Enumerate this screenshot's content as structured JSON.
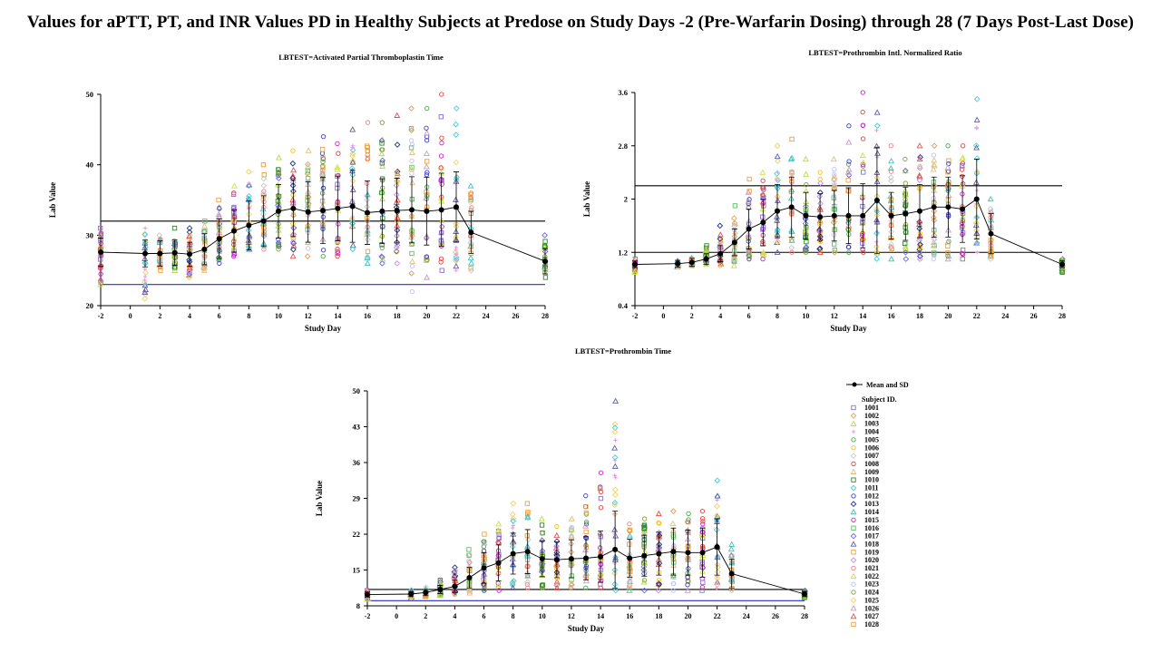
{
  "page_title": "Values for aPTT, PT, and INR Values PD in Healthy Subjects at Predose on Study Days -2 (Pre-Warfarin Dosing) through 28 (7 Days Post-Last Dose)",
  "legend": {
    "mean_label": "Mean and SD",
    "subject_header": "Subject ID.",
    "subjects": [
      "1001",
      "1002",
      "1003",
      "1004",
      "1005",
      "1006",
      "1007",
      "1008",
      "1009",
      "1010",
      "1011",
      "1012",
      "1013",
      "1014",
      "1015",
      "1016",
      "1017",
      "1018",
      "1019",
      "1020",
      "1021",
      "1022",
      "1023",
      "1024",
      "1025",
      "1026",
      "1027",
      "1028"
    ]
  },
  "chart_data": [
    {
      "type": "scatter",
      "title": "LBTEST=Activated Partial Thromboplastin Time",
      "xlabel": "Study Day",
      "ylabel": "Lab Value",
      "xlim": [
        -2,
        28
      ],
      "ylim": [
        20,
        50
      ],
      "xticks": [
        -2,
        0,
        2,
        4,
        6,
        8,
        10,
        12,
        14,
        16,
        18,
        20,
        22,
        24,
        26,
        28
      ],
      "yticks": [
        20,
        30,
        40,
        50
      ],
      "reference_lines": {
        "upper": 32,
        "lower": 23
      },
      "mean_sd": {
        "x": [
          -2,
          1,
          2,
          3,
          4,
          5,
          6,
          7,
          8,
          9,
          10,
          11,
          12,
          13,
          14,
          15,
          16,
          17,
          18,
          19,
          20,
          21,
          22,
          23,
          28
        ],
        "mean": [
          27.6,
          27.4,
          27.4,
          27.5,
          27.3,
          28.0,
          29.5,
          30.6,
          31.4,
          32.0,
          33.4,
          33.8,
          33.3,
          33.5,
          33.8,
          34.1,
          33.2,
          33.4,
          33.5,
          33.6,
          33.4,
          33.6,
          34.0,
          30.4,
          26.3
        ],
        "sd": [
          2.0,
          1.9,
          1.8,
          1.8,
          1.7,
          2.2,
          2.8,
          3.0,
          3.5,
          3.6,
          3.8,
          4.0,
          4.3,
          4.7,
          4.6,
          5.1,
          4.5,
          4.6,
          4.6,
          4.7,
          4.8,
          5.2,
          5.0,
          3.0,
          1.8
        ]
      },
      "subject_spread": {
        "x": [
          -2,
          1,
          2,
          3,
          4,
          5,
          6,
          7,
          8,
          9,
          10,
          11,
          12,
          13,
          14,
          15,
          16,
          17,
          18,
          19,
          20,
          21,
          22,
          23,
          28
        ],
        "min": [
          23,
          21,
          25,
          25,
          24,
          25,
          26,
          27,
          28,
          28,
          28,
          27,
          27,
          27,
          27,
          28,
          26,
          26,
          26,
          22,
          24,
          25,
          25,
          25,
          24
        ],
        "max": [
          31,
          31,
          30,
          31,
          31,
          32,
          35,
          37,
          39,
          40,
          41,
          42,
          42,
          44,
          43,
          45,
          46,
          46,
          47,
          48,
          48,
          50,
          48,
          37,
          30
        ]
      }
    },
    {
      "type": "scatter",
      "title": "LBTEST=Prothrombin Intl. Normalized Ratio",
      "xlabel": "Study Day",
      "ylabel": "Lab Value",
      "xlim": [
        -2,
        28
      ],
      "ylim": [
        0.4,
        3.6
      ],
      "xticks": [
        -2,
        0,
        2,
        4,
        6,
        8,
        10,
        12,
        14,
        16,
        18,
        20,
        22,
        24,
        26,
        28
      ],
      "yticks": [
        0.4,
        1.2,
        2,
        2.8,
        3.6
      ],
      "ytick_labels": [
        "0.4",
        "1.2",
        "2",
        "2.8",
        "3.6"
      ],
      "reference_lines": {
        "upper": 2.2,
        "lower": 1.2
      },
      "mean_sd": {
        "x": [
          -2,
          1,
          2,
          3,
          4,
          5,
          6,
          7,
          8,
          9,
          10,
          11,
          12,
          13,
          14,
          15,
          16,
          17,
          18,
          19,
          20,
          21,
          22,
          23,
          28
        ],
        "mean": [
          1.02,
          1.03,
          1.05,
          1.1,
          1.18,
          1.35,
          1.55,
          1.65,
          1.82,
          1.88,
          1.75,
          1.73,
          1.75,
          1.75,
          1.75,
          1.98,
          1.75,
          1.78,
          1.82,
          1.88,
          1.88,
          1.85,
          2.0,
          1.48,
          1.02
        ],
        "sd": [
          0.05,
          0.05,
          0.06,
          0.08,
          0.12,
          0.2,
          0.3,
          0.35,
          0.4,
          0.45,
          0.35,
          0.35,
          0.38,
          0.42,
          0.48,
          0.8,
          0.35,
          0.4,
          0.4,
          0.45,
          0.45,
          0.5,
          0.6,
          0.3,
          0.05
        ]
      },
      "subject_spread": {
        "x": [
          -2,
          1,
          2,
          3,
          4,
          5,
          6,
          7,
          8,
          9,
          10,
          11,
          12,
          13,
          14,
          15,
          16,
          17,
          18,
          19,
          20,
          21,
          22,
          23,
          28
        ],
        "min": [
          0.9,
          0.98,
          1.0,
          1.02,
          1.0,
          1.0,
          1.1,
          1.1,
          1.2,
          1.2,
          1.2,
          1.2,
          1.2,
          1.2,
          1.2,
          1.1,
          1.1,
          1.1,
          1.1,
          1.1,
          1.1,
          1.1,
          1.2,
          1.1,
          0.9
        ],
        "max": [
          1.1,
          1.08,
          1.12,
          1.3,
          1.6,
          1.9,
          2.3,
          2.4,
          2.8,
          2.9,
          2.6,
          2.4,
          2.6,
          3.1,
          3.6,
          3.3,
          2.8,
          2.6,
          2.8,
          2.8,
          2.8,
          2.8,
          3.5,
          2.0,
          1.1
        ]
      }
    },
    {
      "type": "scatter",
      "title": "LBTEST=Prothrombin Time",
      "xlabel": "Study Day",
      "ylabel": "Lab Value",
      "xlim": [
        -2,
        28
      ],
      "ylim": [
        8,
        50
      ],
      "xticks": [
        -2,
        0,
        2,
        4,
        6,
        8,
        10,
        12,
        14,
        16,
        18,
        20,
        22,
        24,
        26,
        28
      ],
      "yticks": [
        8,
        15,
        22,
        29,
        36,
        43,
        50
      ],
      "reference_lines": {
        "upper": 11.2,
        "lower": 9.0
      },
      "mean_sd": {
        "x": [
          -2,
          1,
          2,
          3,
          4,
          5,
          6,
          7,
          8,
          9,
          10,
          11,
          12,
          13,
          14,
          15,
          16,
          17,
          18,
          19,
          20,
          21,
          22,
          23,
          28
        ],
        "mean": [
          10.2,
          10.3,
          10.6,
          11.2,
          11.8,
          13.5,
          15.4,
          16.4,
          18.2,
          18.6,
          17.2,
          17.0,
          17.2,
          17.3,
          17.6,
          19.0,
          17.3,
          17.8,
          18.2,
          18.6,
          18.4,
          18.4,
          19.5,
          14.3,
          10.3
        ],
        "sd": [
          0.5,
          0.5,
          0.6,
          0.8,
          1.2,
          2.0,
          3.0,
          3.5,
          4.0,
          4.3,
          3.5,
          3.5,
          3.7,
          4.2,
          5.0,
          7.5,
          3.7,
          4.0,
          4.2,
          4.6,
          4.4,
          4.8,
          5.5,
          2.8,
          0.5
        ]
      },
      "subject_spread": {
        "x": [
          -2,
          1,
          2,
          3,
          4,
          5,
          6,
          7,
          8,
          9,
          10,
          11,
          12,
          13,
          14,
          15,
          16,
          17,
          18,
          19,
          20,
          21,
          22,
          23,
          28
        ],
        "min": [
          9.3,
          9.6,
          9.8,
          10.0,
          10.2,
          10.5,
          11.0,
          11.0,
          11.5,
          11.5,
          11.5,
          11.5,
          11.5,
          11.5,
          11.5,
          11.0,
          11.0,
          11.0,
          11.0,
          11.0,
          11.0,
          11.0,
          11.5,
          11.0,
          9.6
        ],
        "max": [
          11.0,
          11.2,
          11.6,
          13.0,
          15.5,
          19.0,
          22.0,
          24.0,
          28.0,
          28.0,
          25.0,
          23.5,
          25.0,
          29.5,
          34.0,
          48.0,
          24.0,
          25.0,
          26.0,
          26.5,
          26.0,
          26.5,
          32.5,
          20.0,
          11.0
        ]
      }
    }
  ],
  "series_colors": [
    "#8a6fd6",
    "#e0a060",
    "#b6d94c",
    "#e6a0e6",
    "#4aa84a",
    "#f0c020",
    "#c9c9c9",
    "#e64040",
    "#e0c080",
    "#2a8a2a",
    "#40d0e0",
    "#4040c0",
    "#203080",
    "#40c0c0",
    "#d020d0",
    "#60c060",
    "#6a6ae0",
    "#6060a0",
    "#f0a040",
    "#c090e0",
    "#f08080",
    "#d0e040",
    "#c0c0ff",
    "#80a040",
    "#f0d060",
    "#c0a0c0",
    "#e05050",
    "#f0a030"
  ],
  "series_markers": [
    "square",
    "diamond",
    "triangle",
    "plus",
    "circle",
    "circle",
    "diamond",
    "circle",
    "triangle",
    "square",
    "diamond",
    "circle",
    "diamond",
    "triangle",
    "circle",
    "square",
    "diamond",
    "triangle",
    "square",
    "diamond",
    "circle",
    "triangle",
    "circle",
    "circle",
    "diamond",
    "triangle",
    "triangle",
    "square"
  ]
}
